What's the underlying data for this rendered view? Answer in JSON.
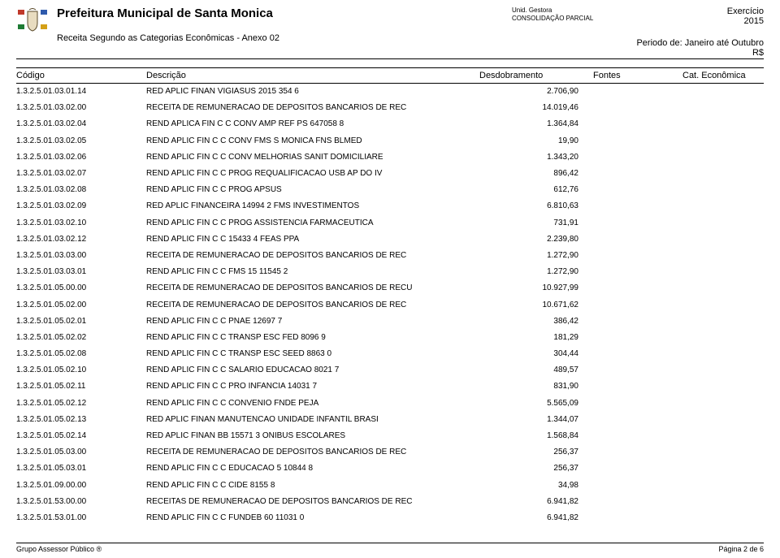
{
  "header": {
    "title": "Prefeitura Municipal de Santa Monica",
    "subtitle": "Receita Segundo as Categorias Econômicas - Anexo 02",
    "unid_label": "Unid. Gestora",
    "unid_value": "CONSOLIDAÇÃO PARCIAL",
    "exercicio_label": "Exercício",
    "exercicio_year": "2015",
    "periodo": "Periodo de: Janeiro até Outubro",
    "currency": "R$"
  },
  "columns": {
    "codigo": "Código",
    "descricao": "Descrição",
    "desdobramento": "Desdobramento",
    "fontes": "Fontes",
    "cat": "Cat. Econômica"
  },
  "rows": [
    {
      "codigo": "1.3.2.5.01.03.01.14",
      "indent": 2,
      "desc": "RED APLIC FINAN VIGIASUS 2015   354 6",
      "val": "2.706,90"
    },
    {
      "codigo": "1.3.2.5.01.03.02.00",
      "indent": 1,
      "desc": "RECEITA DE REMUNERACAO DE DEPOSITOS BANCARIOS DE REC",
      "val": "14.019,46"
    },
    {
      "codigo": "1.3.2.5.01.03.02.04",
      "indent": 2,
      "desc": "REND  APLICA FIN    C C CONV  AMP  REF  PS   647058 8",
      "val": "1.364,84"
    },
    {
      "codigo": "1.3.2.5.01.03.02.05",
      "indent": 2,
      "desc": "REND  APLIC  FIN    C C CONV  FMS S MONICA FNS BLMED",
      "val": "19,90"
    },
    {
      "codigo": "1.3.2.5.01.03.02.06",
      "indent": 2,
      "desc": "REND  APLIC  FIN  C C  CONV  MELHORIAS SANIT  DOMICILIARE",
      "val": "1.343,20"
    },
    {
      "codigo": "1.3.2.5.01.03.02.07",
      "indent": 2,
      "desc": "REND  APLIC  FIN    C C PROG  REQUALIFICACAO USB AP  DO IV",
      "val": "896,42"
    },
    {
      "codigo": "1.3.2.5.01.03.02.08",
      "indent": 2,
      "desc": "REND  APLIC  FIN    C C PROG  APSUS",
      "val": "612,76"
    },
    {
      "codigo": "1.3.2.5.01.03.02.09",
      "indent": 2,
      "desc": "RED  APLIC  FINANCEIRA   14994 2 FMS INVESTIMENTOS",
      "val": "6.810,63"
    },
    {
      "codigo": "1.3.2.5.01.03.02.10",
      "indent": 2,
      "desc": "REND  APLIC  FIN    C C PROG  ASSISTENCIA FARMACEUTICA",
      "val": "731,91"
    },
    {
      "codigo": "1.3.2.5.01.03.02.12",
      "indent": 2,
      "desc": "REND APLIC FIN C C 15433 4   FEAS PPA",
      "val": "2.239,80"
    },
    {
      "codigo": "1.3.2.5.01.03.03.00",
      "indent": 1,
      "desc": "RECEITA DE REMUNERACAO DE DEPOSITOS BANCARIOS DE REC",
      "val": "1.272,90"
    },
    {
      "codigo": "1.3.2.5.01.03.03.01",
      "indent": 2,
      "desc": "REND  APLIC  FIN    C C FMS 15   11545 2",
      "val": "1.272,90"
    },
    {
      "codigo": "1.3.2.5.01.05.00.00",
      "indent": 0,
      "desc": "RECEITA DE REMUNERACAO DE DEPOSITOS BANCARIOS DE RECU",
      "val": "10.927,99"
    },
    {
      "codigo": "1.3.2.5.01.05.02.00",
      "indent": 1,
      "desc": "RECEITA DE REMUNERACAO DE DEPOSITOS BANCARIOS DE REC",
      "val": "10.671,62"
    },
    {
      "codigo": "1.3.2.5.01.05.02.01",
      "indent": 2,
      "desc": "REND  APLIC  FIN    C C PNAE   12697 7",
      "val": "386,42"
    },
    {
      "codigo": "1.3.2.5.01.05.02.02",
      "indent": 2,
      "desc": "REND  APLIC  FIN    C C TRANSP  ESC  FED    8096 9",
      "val": "181,29"
    },
    {
      "codigo": "1.3.2.5.01.05.02.08",
      "indent": 2,
      "desc": "REND  APLIC  FIN    C C TRANSP  ESC  SEED   8863 0",
      "val": "304,44"
    },
    {
      "codigo": "1.3.2.5.01.05.02.10",
      "indent": 2,
      "desc": "REND  APLIC  FIN    C C SALARIO EDUCACAO  8021 7",
      "val": "489,57"
    },
    {
      "codigo": "1.3.2.5.01.05.02.11",
      "indent": 2,
      "desc": "REND  APLIC  FIN    C C PRO INFANCIA 14031 7",
      "val": "831,90"
    },
    {
      "codigo": "1.3.2.5.01.05.02.12",
      "indent": 2,
      "desc": "REND  APLIC  FIN    C C CONVENIO FNDE PEJA",
      "val": "5.565,09"
    },
    {
      "codigo": "1.3.2.5.01.05.02.13",
      "indent": 2,
      "desc": "RED  APLIC  FINAN     MANUTENCAO UNIDADE INFANTIL  BRASI",
      "val": "1.344,07"
    },
    {
      "codigo": "1.3.2.5.01.05.02.14",
      "indent": 2,
      "desc": "RED  APLIC  FINAN    BB 15571 3   ONIBUS ESCOLARES",
      "val": "1.568,84"
    },
    {
      "codigo": "1.3.2.5.01.05.03.00",
      "indent": 1,
      "desc": "RECEITA DE REMUNERACAO DE DEPOSITOS BANCARIOS DE REC",
      "val": "256,37"
    },
    {
      "codigo": "1.3.2.5.01.05.03.01",
      "indent": 2,
      "desc": "REND  APLIC  FIN    C C EDUCACAO   5   10844 8",
      "val": "256,37"
    },
    {
      "codigo": "1.3.2.5.01.09.00.00",
      "indent": 0,
      "desc": "REND  APLIC  FIN    C C CIDE  8155 8",
      "val": "34,98"
    },
    {
      "codigo": "1.3.2.5.01.53.00.00",
      "indent": 0,
      "desc": "RECEITAS DE REMUNERACAO DE DEPOSITOS BANCARIOS DE REC",
      "val": "6.941,82"
    },
    {
      "codigo": "1.3.2.5.01.53.01.00",
      "indent": 1,
      "desc": "REND  APLIC  FIN    C C FUNDEB 60   11031 0",
      "val": "6.941,82"
    }
  ],
  "footer": {
    "left": "Grupo Assessor Público ®",
    "right": "Página 2 de 6"
  },
  "style": {
    "text_color": "#000000",
    "background_color": "#ffffff",
    "sep_color": "#000000",
    "body_font_size": 10,
    "header_title_font_size": 15,
    "colhead_font_size": 11,
    "crest_colors": {
      "flag_red": "#c0392b",
      "flag_blue": "#2e5aac",
      "flag_green": "#1e7b34",
      "flag_yellow": "#d4a017",
      "shield_fill": "#e8dcc0",
      "shield_stroke": "#5a4a2a"
    }
  }
}
